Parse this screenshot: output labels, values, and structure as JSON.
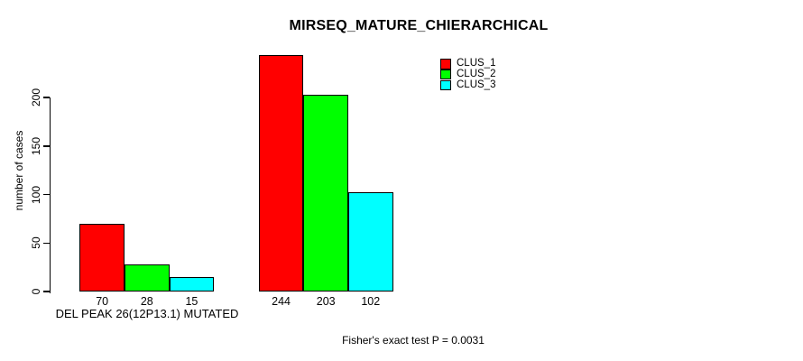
{
  "chart_data": {
    "type": "bar",
    "title": "MIRSEQ_MATURE_CHIERARCHICAL",
    "xlabel": "",
    "ylabel": "number of cases",
    "categories": [
      "DEL PEAK 26(12P13.1) MUTATED",
      ""
    ],
    "series": [
      {
        "name": "CLUS_1",
        "color": "#ff0000",
        "values": [
          70,
          244
        ]
      },
      {
        "name": "CLUS_2",
        "color": "#00ff00",
        "values": [
          28,
          203
        ]
      },
      {
        "name": "CLUS_3",
        "color": "#00ffff",
        "values": [
          15,
          102
        ]
      }
    ],
    "bar_value_labels": [
      [
        70,
        28,
        15
      ],
      [
        244,
        203,
        102
      ]
    ],
    "yticks": [
      0,
      50,
      100,
      150,
      200
    ],
    "ylim": [
      0,
      244
    ],
    "grid": false,
    "legend_position": "inside-top-center-right",
    "annotation": "Fisher's exact test P = 0.0031",
    "colors": {
      "bar_border": "#000000",
      "axis": "#000000",
      "text": "#000000",
      "background": "#ffffff"
    }
  }
}
